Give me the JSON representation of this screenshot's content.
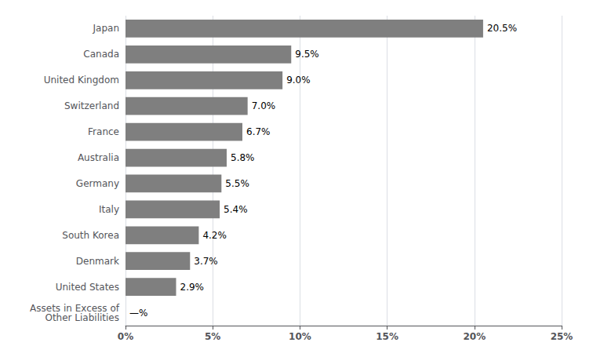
{
  "chart_data": {
    "type": "bar",
    "orientation": "horizontal",
    "categories": [
      "Assets in Excess of\nOther Liabilities",
      "United States",
      "Denmark",
      "South Korea",
      "Italy",
      "Germany",
      "Australia",
      "France",
      "Switzerland",
      "United Kingdom",
      "Canada",
      "Japan"
    ],
    "values": [
      0.0,
      2.9,
      3.7,
      4.2,
      5.4,
      5.5,
      5.8,
      6.7,
      7.0,
      9.0,
      9.5,
      20.5
    ],
    "value_labels": [
      "—%",
      "2.9%",
      "3.7%",
      "4.2%",
      "5.4%",
      "5.5%",
      "5.8%",
      "6.7%",
      "7.0%",
      "9.0%",
      "9.5%",
      "20.5%"
    ],
    "data_labels": true,
    "color": "#7f7f7f",
    "xlim": [
      0,
      25
    ],
    "xticks": [
      {
        "value": 0,
        "label": "0%"
      },
      {
        "value": 5,
        "label": "5%"
      },
      {
        "value": 10,
        "label": "10%"
      },
      {
        "value": 15,
        "label": "15%"
      },
      {
        "value": 20,
        "label": "20%"
      },
      {
        "value": 25,
        "label": "25%"
      }
    ],
    "grid": true
  }
}
